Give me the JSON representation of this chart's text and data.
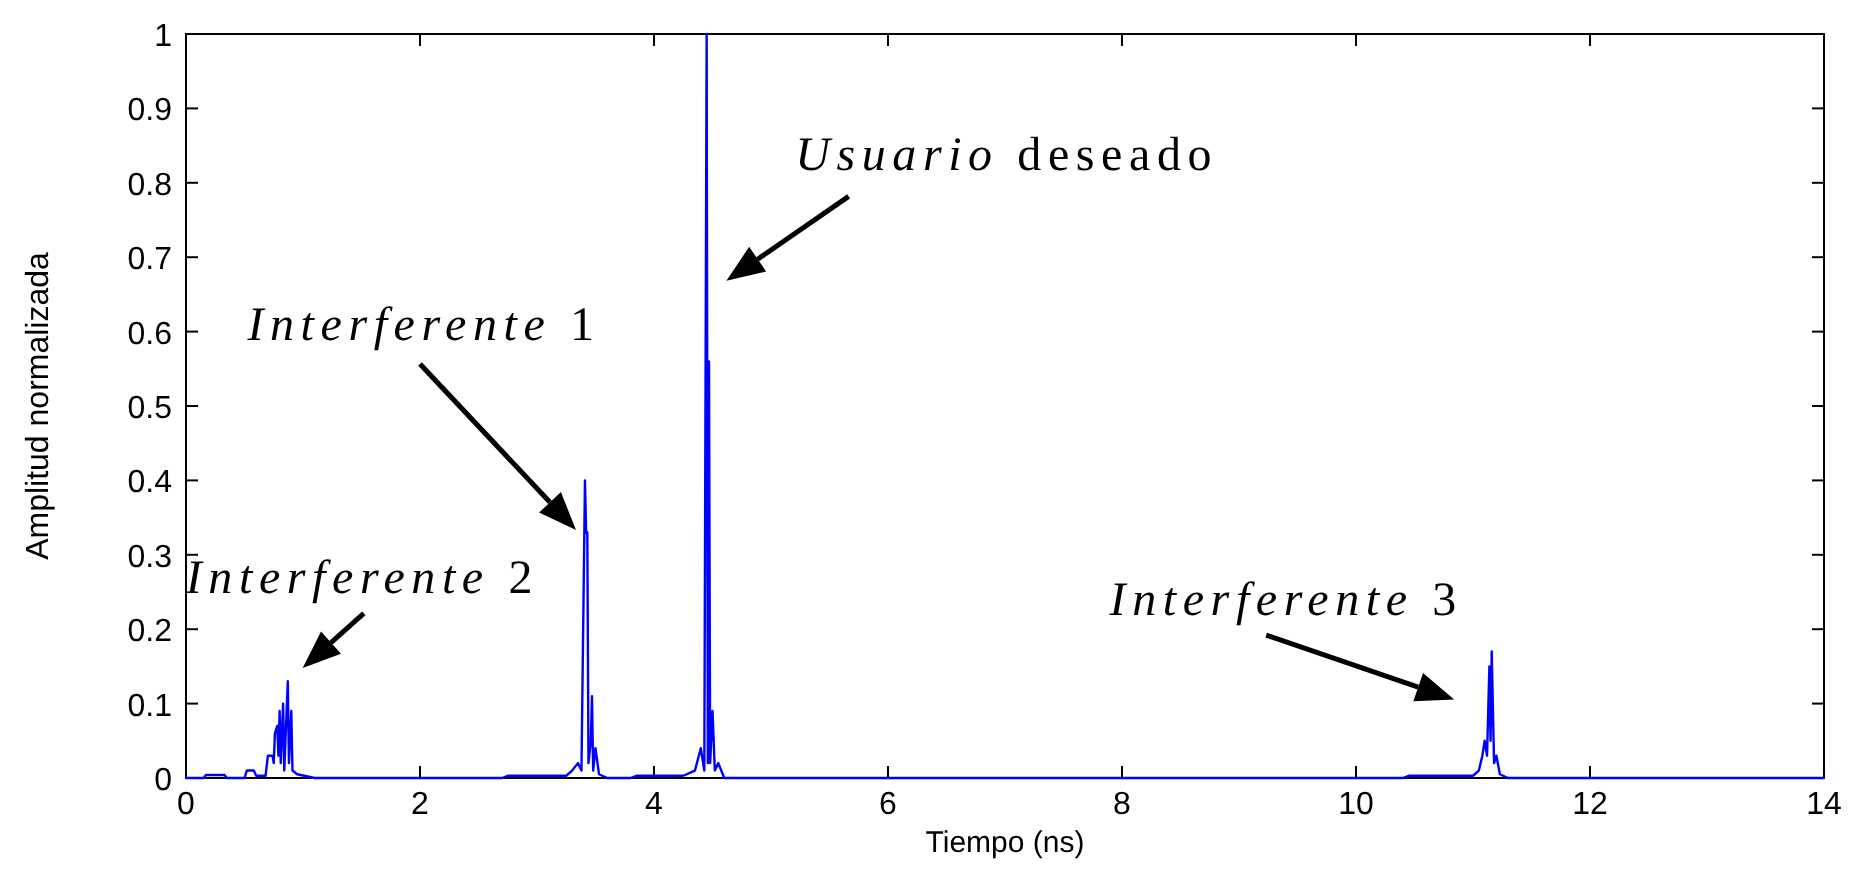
{
  "chart_data": {
    "type": "line",
    "xlabel": "Tiempo (ns)",
    "ylabel": "Amplitud normalizada",
    "xlim": [
      0,
      14
    ],
    "xticks": [
      0,
      2,
      4,
      6,
      8,
      10,
      12,
      14
    ],
    "ylim": [
      0,
      1
    ],
    "yticks": [
      0,
      0.1,
      0.2,
      0.3,
      0.4,
      0.5,
      0.6,
      0.7,
      0.8,
      0.9,
      1
    ],
    "series": [
      {
        "color": "#0000ff",
        "x": [
          0,
          0.15,
          0.17,
          0.33,
          0.35,
          0.5,
          0.52,
          0.58,
          0.6,
          0.68,
          0.7,
          0.74,
          0.75,
          0.76,
          0.78,
          0.79,
          0.8,
          0.81,
          0.83,
          0.84,
          0.87,
          0.88,
          0.9,
          0.91,
          0.95,
          1.1,
          2.7,
          2.75,
          3.25,
          3.3,
          3.35,
          3.38,
          3.41,
          3.42,
          3.43,
          3.44,
          3.46,
          3.47,
          3.48,
          3.5,
          3.53,
          3.6,
          3.8,
          3.85,
          4.25,
          4.35,
          4.4,
          4.43,
          4.45,
          4.46,
          4.47,
          4.48,
          4.5,
          4.52,
          4.55,
          4.6,
          10.4,
          10.45,
          11.0,
          11.05,
          11.08,
          11.1,
          11.12,
          11.14,
          11.15,
          11.16,
          11.18,
          11.2,
          11.23,
          11.3,
          14
        ],
        "values": [
          0,
          0,
          0.004,
          0.004,
          0,
          0,
          0.01,
          0.01,
          0.003,
          0.003,
          0.03,
          0.03,
          0.02,
          0.06,
          0.07,
          0.03,
          0.09,
          0.02,
          0.1,
          0.01,
          0.13,
          0.02,
          0.09,
          0.01,
          0.005,
          0,
          0,
          0.003,
          0.003,
          0.01,
          0.02,
          0.01,
          0.4,
          0.33,
          0.33,
          0.02,
          0.05,
          0.11,
          0.01,
          0.04,
          0.005,
          0,
          0,
          0.003,
          0.003,
          0.01,
          0.04,
          0.01,
          1,
          0.02,
          0.56,
          0.02,
          0.09,
          0.01,
          0.02,
          0,
          0,
          0.003,
          0.003,
          0.01,
          0.03,
          0.05,
          0.03,
          0.15,
          0.05,
          0.17,
          0.02,
          0.03,
          0.005,
          0,
          0
        ]
      }
    ],
    "annotations": [
      {
        "text": "Interferente 2",
        "x": 0.87,
        "y": 0.13
      },
      "Interferente 1",
      {
        "text": "Usuario deseado",
        "x": 4.45,
        "y": 0.65
      },
      {
        "text": "Interferente 3",
        "x": 11.13,
        "y": 0.09
      }
    ]
  }
}
